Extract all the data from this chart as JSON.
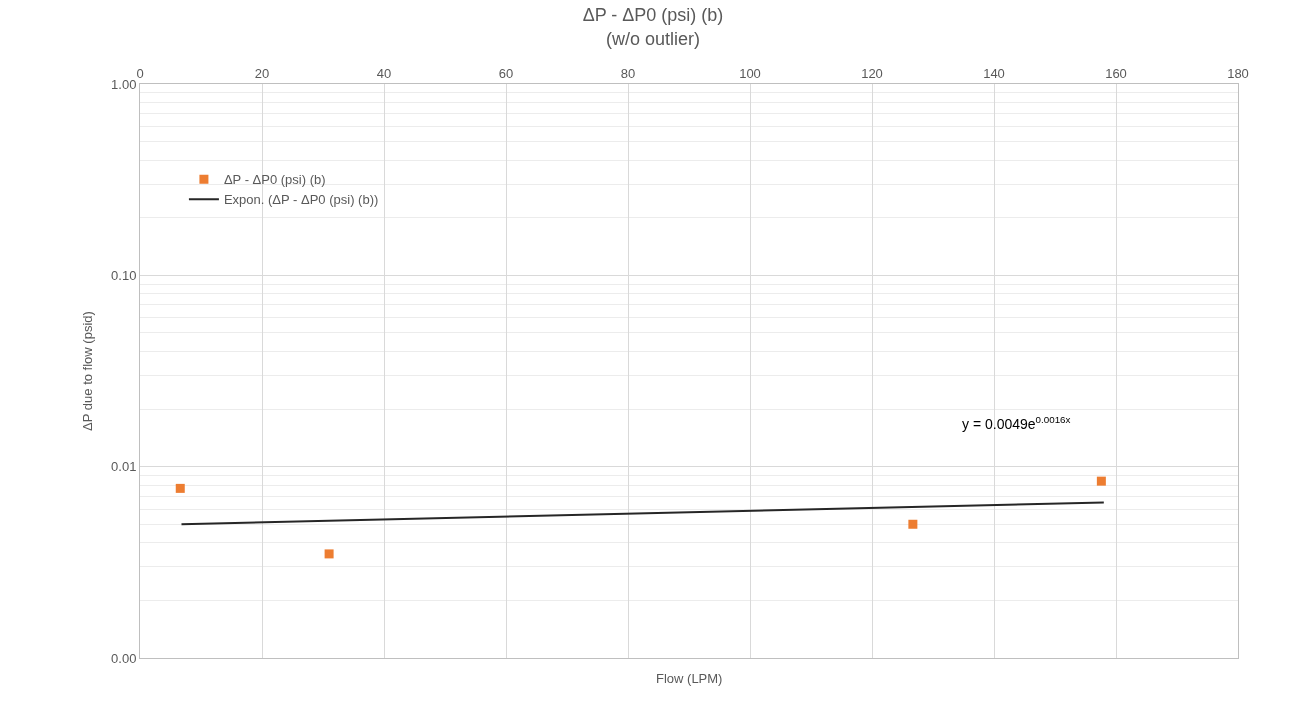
{
  "chart_data": {
    "type": "scatter",
    "title": "ΔP - ΔP0 (psi) (b)",
    "subtitle": "(w/o outlier)",
    "xlabel": "Flow (LPM)",
    "ylabel": "ΔP due to flow (psid)",
    "series": [
      {
        "name": "ΔP - ΔP0 (psi) (b)",
        "color": "#ed7d31",
        "marker": "square",
        "x": [
          6.6,
          31,
          126.7,
          157.6
        ],
        "values": [
          0.0077,
          0.0035,
          0.005,
          0.0084
        ]
      },
      {
        "name": "Expon. (ΔP - ΔP0 (psi) (b))",
        "type": "line",
        "color": "#262626",
        "marker": "none",
        "line_style": "solid",
        "x": [
          6.8,
          158
        ],
        "values": [
          0.005,
          0.0065
        ]
      }
    ],
    "annotations": [
      "y = 0.0049e$^{0.0016x}$"
    ],
    "log": "y",
    "xlim": [
      0,
      180
    ],
    "xticks": [
      0,
      20,
      40,
      60,
      80,
      100,
      120,
      140,
      160,
      180
    ],
    "ylim": [
      0.001,
      1
    ],
    "yticks": [
      {
        "value": 0.001,
        "label": "0.00"
      },
      {
        "value": 0.01,
        "label": "0.01"
      },
      {
        "value": 0.1,
        "label": "0.10"
      },
      {
        "value": 1,
        "label": "1.00"
      }
    ],
    "grid": true,
    "legend": "top left"
  }
}
